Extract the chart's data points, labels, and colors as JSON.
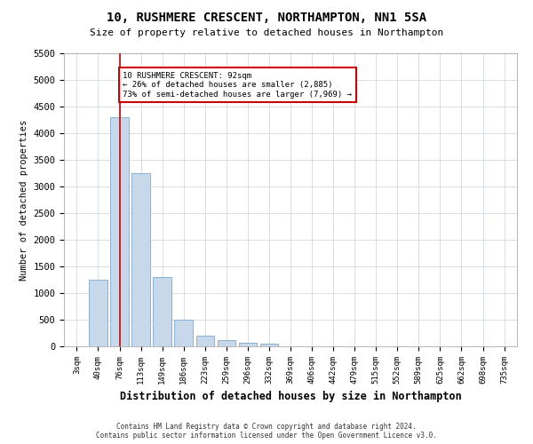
{
  "title": "10, RUSHMERE CRESCENT, NORTHAMPTON, NN1 5SA",
  "subtitle": "Size of property relative to detached houses in Northampton",
  "xlabel": "Distribution of detached houses by size in Northampton",
  "ylabel": "Number of detached properties",
  "bar_color": "#c8d8eb",
  "bar_edge_color": "#7aaace",
  "annotation_line_color": "#cc0000",
  "annotation_box_color": "#cc0000",
  "categories": [
    "3sqm",
    "40sqm",
    "76sqm",
    "113sqm",
    "149sqm",
    "186sqm",
    "223sqm",
    "259sqm",
    "296sqm",
    "332sqm",
    "369sqm",
    "406sqm",
    "442sqm",
    "479sqm",
    "515sqm",
    "552sqm",
    "589sqm",
    "625sqm",
    "662sqm",
    "698sqm",
    "735sqm"
  ],
  "values": [
    0,
    1250,
    4300,
    3250,
    1300,
    500,
    200,
    110,
    75,
    55,
    0,
    0,
    0,
    0,
    0,
    0,
    0,
    0,
    0,
    0,
    0
  ],
  "property_bar_index": 2,
  "annotation_text_line1": "10 RUSHMERE CRESCENT: 92sqm",
  "annotation_text_line2": "← 26% of detached houses are smaller (2,885)",
  "annotation_text_line3": "73% of semi-detached houses are larger (7,969) →",
  "ylim": [
    0,
    5500
  ],
  "yticks": [
    0,
    500,
    1000,
    1500,
    2000,
    2500,
    3000,
    3500,
    4000,
    4500,
    5000,
    5500
  ],
  "footer_line1": "Contains HM Land Registry data © Crown copyright and database right 2024.",
  "footer_line2": "Contains public sector information licensed under the Open Government Licence v3.0.",
  "background_color": "#ffffff",
  "grid_color": "#c8d0d8"
}
